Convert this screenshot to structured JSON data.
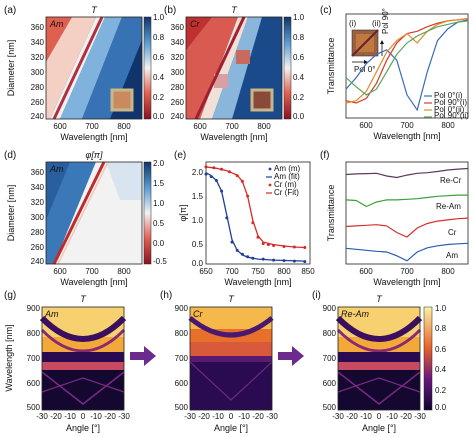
{
  "colors": {
    "heat_low": "#8a1020",
    "heat_mid": "#f2f2f2",
    "heat_high": "#10346b",
    "ml_dark": "#0d0530",
    "ml_purple": "#6a1580",
    "ml_orange": "#e8602a",
    "ml_yellow": "#fbf3a8",
    "arrow": "#6b2a8c",
    "am_m": "#1f3f9a",
    "am_fit": "#1f3f9a",
    "cr_m": "#d62a2a",
    "cr_fit": "#d62a2a",
    "line_pol0_i": "#3c6bb5",
    "line_pol90_i": "#d63a2a",
    "line_pol0_ii": "#e08a2a",
    "line_pol90_ii": "#5aa65a",
    "recr": "#5a3a5a",
    "ream": "#3aa03a",
    "cr_line": "#d63030",
    "am_line": "#2a5fb0"
  },
  "panels": {
    "a": {
      "letter": "(a)",
      "title": "T",
      "tag": "Am",
      "ylabel": "Diameter [nm]",
      "xlabel": "Wavelength [nm]",
      "xticks": [
        "600",
        "700",
        "800"
      ],
      "yticks": [
        "360",
        "340",
        "320",
        "300",
        "280",
        "260",
        "240"
      ],
      "cbar": [
        "1.0",
        "0.8",
        "0.6",
        "0.4",
        "0.2",
        "0.0"
      ]
    },
    "b": {
      "letter": "(b)",
      "title": "T",
      "tag": "Cr",
      "xlabel": "Wavelength [nm]",
      "xticks": [
        "600",
        "700",
        "800"
      ],
      "yticks": [
        "360",
        "340",
        "320",
        "300",
        "280",
        "260",
        "240"
      ],
      "cbar": [
        "1.0",
        "0.8",
        "0.6",
        "0.4",
        "0.2",
        "0.0"
      ]
    },
    "c": {
      "letter": "(c)",
      "ylabel": "Transmittance",
      "xlabel": "Wavelength [nm]",
      "xticks": [
        "600",
        "700",
        "800"
      ],
      "inset_i": "(i)",
      "inset_ii": "(ii)",
      "pol0": "Pol 0°",
      "pol90": "Pol 90°",
      "legend": [
        "Pol 0°(i)",
        "Pol 90°(i)",
        "Pol 0°(ii)",
        "Pol 90°(ii)"
      ]
    },
    "d": {
      "letter": "(d)",
      "title": "φ[π]",
      "tag": "Am",
      "ylabel": "Diameter [nm]",
      "xlabel": "Wavelength [nm]",
      "xticks": [
        "600",
        "700",
        "800"
      ],
      "yticks": [
        "360",
        "340",
        "320",
        "300",
        "280",
        "260",
        "240"
      ],
      "cbar": [
        "2.0",
        "1.5",
        "1.0",
        "0.5",
        "0.0",
        "-0.5"
      ]
    },
    "e": {
      "letter": "(e)",
      "ylabel": "φ[π]",
      "xlabel": "Wavelength [nm]",
      "xticks": [
        "650",
        "700",
        "750",
        "800",
        "850"
      ],
      "yticks": [
        "2.0",
        "1.5",
        "1.0",
        "0.5",
        "0.0"
      ],
      "legend": [
        "Am (m)",
        "Am (fit)",
        "Cr (m)",
        "Cr (Fit)"
      ]
    },
    "f": {
      "letter": "(f)",
      "ylabel": "Transmittance",
      "xlabel": "Wavelength [nm]",
      "xticks": [
        "600",
        "700",
        "800"
      ],
      "labels": [
        "Re-Cr",
        "Re-Am",
        "Cr",
        "Am"
      ]
    },
    "g": {
      "letter": "(g)",
      "title": "T",
      "tag": "Am",
      "ylabel": "Wavelength [nm]",
      "xlabel": "Angle [°]",
      "xticks": [
        "-30",
        "-20",
        "-10",
        "0",
        "-10",
        "-20",
        "-30"
      ],
      "yticks": [
        "900",
        "800",
        "700",
        "600",
        "500"
      ]
    },
    "h": {
      "letter": "(h)",
      "title": "T",
      "tag": "Cr",
      "xlabel": "Angle [°]",
      "xticks": [
        "-30",
        "-20",
        "-10",
        "0",
        "-10",
        "-20",
        "-30"
      ],
      "yticks": [
        "900",
        "800",
        "700",
        "600",
        "500"
      ]
    },
    "i": {
      "letter": "(i)",
      "title": "T",
      "tag": "Re-Am",
      "xlabel": "Angle [°]",
      "xticks": [
        "-30",
        "-20",
        "-10",
        "0",
        "-10",
        "-20",
        "-30"
      ],
      "yticks": [
        "900",
        "800",
        "700",
        "600",
        "500"
      ],
      "cbar": [
        "1.0",
        "0.8",
        "0.6",
        "0.4",
        "0.2",
        "0.0"
      ]
    }
  },
  "chart_data": [
    {
      "panel": "a",
      "type": "heatmap",
      "quantity": "T",
      "xlabel": "Wavelength [nm]",
      "ylabel": "Diameter [nm]",
      "xlim": [
        550,
        850
      ],
      "ylim": [
        235,
        370
      ],
      "clim": [
        0.0,
        1.0
      ],
      "resonance_ridge": {
        "diameter": [
          240,
          260,
          280,
          300,
          320,
          340,
          360
        ],
        "wavelength": [
          625,
          650,
          675,
          700,
          725,
          750,
          775
        ]
      }
    },
    {
      "panel": "b",
      "type": "heatmap",
      "quantity": "T",
      "xlabel": "Wavelength [nm]",
      "xlim": [
        550,
        850
      ],
      "ylim": [
        235,
        370
      ],
      "clim": [
        0.0,
        1.0
      ],
      "resonance_ridge": {
        "diameter": [
          240,
          260,
          280,
          300,
          320,
          340,
          360
        ],
        "wavelength": [
          640,
          660,
          685,
          705,
          730,
          750,
          770
        ]
      }
    },
    {
      "panel": "c",
      "type": "line",
      "xlabel": "Wavelength [nm]",
      "ylabel": "Transmittance",
      "xlim": [
        550,
        850
      ],
      "x": [
        550,
        575,
        600,
        625,
        650,
        675,
        700,
        725,
        750,
        775,
        800,
        825,
        850
      ],
      "series": [
        {
          "name": "Pol 0°(i)",
          "values": [
            0.3,
            0.4,
            0.52,
            0.6,
            0.64,
            0.55,
            0.25,
            0.12,
            0.45,
            0.72,
            0.82,
            0.88,
            0.9
          ]
        },
        {
          "name": "Pol 90°(i)",
          "values": [
            0.2,
            0.18,
            0.22,
            0.35,
            0.55,
            0.7,
            0.78,
            0.8,
            0.84,
            0.87,
            0.89,
            0.9,
            0.91
          ]
        },
        {
          "name": "Pol 0°(ii)",
          "values": [
            0.18,
            0.2,
            0.28,
            0.45,
            0.62,
            0.72,
            0.78,
            0.7,
            0.8,
            0.86,
            0.89,
            0.9,
            0.91
          ]
        },
        {
          "name": "Pol 90°(ii)",
          "values": [
            0.4,
            0.32,
            0.25,
            0.3,
            0.45,
            0.6,
            0.7,
            0.76,
            0.8,
            0.84,
            0.86,
            0.88,
            0.89
          ]
        }
      ]
    },
    {
      "panel": "d",
      "type": "heatmap",
      "quantity": "φ[π]",
      "xlabel": "Wavelength [nm]",
      "ylabel": "Diameter [nm]",
      "xlim": [
        550,
        850
      ],
      "ylim": [
        235,
        370
      ],
      "clim": [
        -0.5,
        2.0
      ],
      "phase_jump": {
        "diameter": [
          240,
          260,
          280,
          300,
          320,
          340,
          360
        ],
        "wavelength": [
          625,
          650,
          675,
          700,
          725,
          750,
          775
        ]
      }
    },
    {
      "panel": "e",
      "type": "scatter",
      "xlabel": "Wavelength [nm]",
      "ylabel": "φ[π]",
      "xlim": [
        650,
        850
      ],
      "ylim": [
        0.0,
        2.1
      ],
      "series": [
        {
          "name": "Am (m)",
          "x": [
            650,
            660,
            670,
            680,
            690,
            700,
            710,
            720,
            730,
            740,
            760,
            780,
            800,
            820,
            840
          ],
          "values": [
            1.85,
            1.8,
            1.72,
            1.5,
            0.95,
            0.45,
            0.28,
            0.2,
            0.15,
            0.12,
            0.1,
            0.08,
            0.07,
            0.06,
            0.05
          ]
        },
        {
          "name": "Am (fit)",
          "x": [
            650,
            660,
            670,
            680,
            690,
            700,
            710,
            720,
            730,
            750,
            780,
            810,
            840
          ],
          "values": [
            1.88,
            1.82,
            1.72,
            1.5,
            1.0,
            0.5,
            0.28,
            0.19,
            0.14,
            0.1,
            0.08,
            0.07,
            0.06
          ]
        },
        {
          "name": "Cr (m)",
          "x": [
            650,
            665,
            680,
            695,
            710,
            720,
            730,
            740,
            750,
            760,
            770,
            780,
            800,
            820,
            840
          ],
          "values": [
            2.0,
            1.98,
            1.95,
            1.9,
            1.82,
            1.7,
            1.4,
            0.85,
            0.55,
            0.42,
            0.4,
            0.38,
            0.36,
            0.35,
            0.34
          ]
        },
        {
          "name": "Cr (Fit)",
          "x": [
            650,
            670,
            690,
            710,
            720,
            730,
            740,
            750,
            760,
            780,
            800,
            820,
            840
          ],
          "values": [
            2.0,
            1.97,
            1.92,
            1.83,
            1.7,
            1.4,
            0.9,
            0.58,
            0.45,
            0.4,
            0.37,
            0.35,
            0.34
          ]
        }
      ]
    },
    {
      "panel": "f",
      "type": "line",
      "xlabel": "Wavelength [nm]",
      "ylabel": "Transmittance",
      "xlim": [
        550,
        850
      ],
      "x": [
        550,
        575,
        600,
        625,
        650,
        675,
        700,
        725,
        750,
        775,
        800,
        825,
        850
      ],
      "series": [
        {
          "name": "Re-Cr",
          "values": [
            0.6,
            0.62,
            0.63,
            0.64,
            0.55,
            0.5,
            0.58,
            0.64,
            0.66,
            0.7,
            0.75,
            0.78,
            0.8
          ]
        },
        {
          "name": "Re-Am",
          "values": [
            0.62,
            0.6,
            0.4,
            0.55,
            0.62,
            0.62,
            0.64,
            0.66,
            0.7,
            0.74,
            0.76,
            0.78,
            0.78
          ]
        },
        {
          "name": "Cr",
          "values": [
            0.6,
            0.62,
            0.64,
            0.66,
            0.62,
            0.4,
            0.25,
            0.55,
            0.7,
            0.78,
            0.82,
            0.86,
            0.88
          ]
        },
        {
          "name": "Am",
          "values": [
            0.7,
            0.66,
            0.62,
            0.58,
            0.55,
            0.4,
            0.2,
            0.55,
            0.72,
            0.8,
            0.85,
            0.88,
            0.9
          ]
        }
      ]
    },
    {
      "panel": "g",
      "type": "heatmap",
      "quantity": "T",
      "xlabel": "Angle [°]",
      "ylabel": "Wavelength [nm]",
      "xlim": [
        -30,
        30
      ],
      "ylim": [
        500,
        900
      ],
      "clim": [
        0.0,
        1.0
      ]
    },
    {
      "panel": "h",
      "type": "heatmap",
      "quantity": "T",
      "xlabel": "Angle [°]",
      "xlim": [
        -30,
        30
      ],
      "ylim": [
        500,
        900
      ],
      "clim": [
        0.0,
        1.0
      ]
    },
    {
      "panel": "i",
      "type": "heatmap",
      "quantity": "T",
      "xlabel": "Angle [°]",
      "xlim": [
        -30,
        30
      ],
      "ylim": [
        500,
        900
      ],
      "clim": [
        0.0,
        1.0
      ]
    }
  ]
}
